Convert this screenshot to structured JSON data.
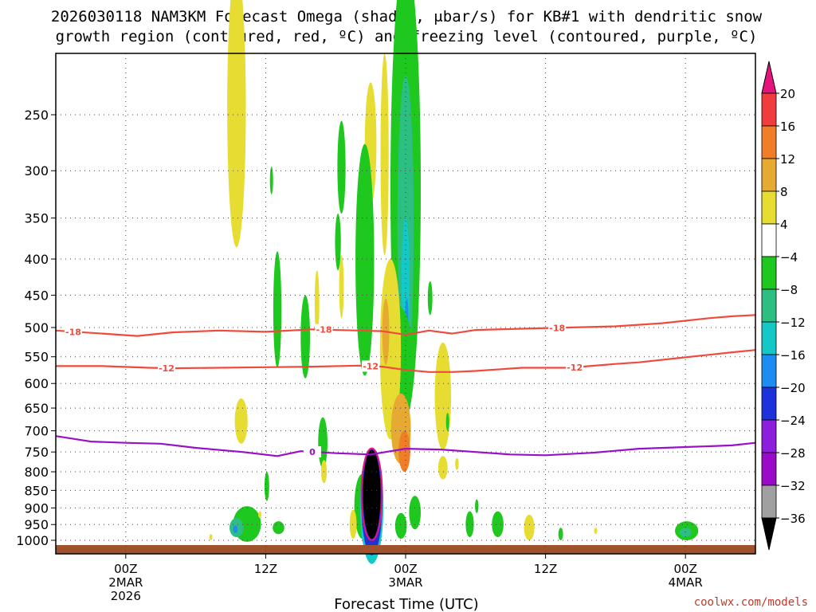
{
  "title": {
    "line1": "2026030118 NAM3KM Forecast Omega (shaded, μbar/s) for KB#1 with dendritic snow",
    "line2": "growth region (contoured, red, ºC) and freezing level (contoured, purple, ºC)"
  },
  "credit": "coolwx.com/models",
  "colors": {
    "dgz_contour": "#f04a3c",
    "freezing_contour": "#9a10c8",
    "ground": "#a0522d",
    "credit": "#c0392b"
  },
  "chart_data": {
    "type": "heatmap",
    "xlabel": "Forecast Time (UTC)",
    "ylabel": "",
    "x_ticks": [
      {
        "hour": 6,
        "l1": "00Z",
        "l2": "2MAR",
        "l3": "2026"
      },
      {
        "hour": 18,
        "l1": "12Z",
        "l2": "",
        "l3": ""
      },
      {
        "hour": 30,
        "l1": "00Z",
        "l2": "3MAR",
        "l3": ""
      },
      {
        "hour": 42,
        "l1": "12Z",
        "l2": "",
        "l3": ""
      },
      {
        "hour": 54,
        "l1": "00Z",
        "l2": "4MAR",
        "l3": ""
      }
    ],
    "xlim": [
      0,
      60
    ],
    "ylim_hpa": [
      1025,
      200
    ],
    "y_ticks": [
      250,
      300,
      350,
      400,
      450,
      500,
      550,
      600,
      650,
      700,
      750,
      800,
      850,
      900,
      950,
      1000
    ],
    "grid": true,
    "colorbar": {
      "labels": [
        "20",
        "16",
        "12",
        "8",
        "4",
        "−4",
        "−8",
        "−12",
        "−16",
        "−20",
        "−24",
        "−28",
        "−32",
        "−36"
      ],
      "bins": [
        {
          "range": [
            16,
            20
          ],
          "color": "#f03c3c"
        },
        {
          "range": [
            12,
            16
          ],
          "color": "#f07d28"
        },
        {
          "range": [
            8,
            12
          ],
          "color": "#e6aa32"
        },
        {
          "range": [
            4,
            8
          ],
          "color": "#e6dc32"
        },
        {
          "range": [
            -4,
            4
          ],
          "color": "#ffffff"
        },
        {
          "range": [
            -8,
            -4
          ],
          "color": "#1ec81e"
        },
        {
          "range": [
            -12,
            -8
          ],
          "color": "#2dbe82"
        },
        {
          "range": [
            -16,
            -12
          ],
          "color": "#14c8c8"
        },
        {
          "range": [
            -20,
            -16
          ],
          "color": "#1e8cf0"
        },
        {
          "range": [
            -24,
            -20
          ],
          "color": "#1e32dc"
        },
        {
          "range": [
            -28,
            -24
          ],
          "color": "#8c1edc"
        },
        {
          "range": [
            -32,
            -28
          ],
          "color": "#9b0ac8"
        },
        {
          "range": [
            -36,
            -32
          ],
          "color": "#a0a0a0"
        }
      ],
      "max_color": "#e6147d",
      "min_color": "#000000"
    },
    "series": [
      {
        "name": "-18",
        "kind": "dgz",
        "label_hours": [
          1.5,
          23,
          43
        ],
        "points": [
          [
            0,
            505
          ],
          [
            4,
            510
          ],
          [
            7,
            514
          ],
          [
            10,
            508
          ],
          [
            14,
            505
          ],
          [
            18,
            507
          ],
          [
            22,
            503
          ],
          [
            26,
            505
          ],
          [
            28,
            506
          ],
          [
            30,
            512
          ],
          [
            32,
            505
          ],
          [
            34,
            510
          ],
          [
            36,
            504
          ],
          [
            40,
            502
          ],
          [
            44,
            500
          ],
          [
            48,
            498
          ],
          [
            52,
            493
          ],
          [
            56,
            485
          ],
          [
            58,
            482
          ],
          [
            60,
            480
          ]
        ]
      },
      {
        "name": "-12",
        "kind": "dgz",
        "label_hours": [
          9.5,
          27,
          44.5
        ],
        "points": [
          [
            0,
            567
          ],
          [
            4,
            567
          ],
          [
            8,
            570
          ],
          [
            10,
            571
          ],
          [
            14,
            570
          ],
          [
            18,
            569
          ],
          [
            22,
            568
          ],
          [
            26,
            566
          ],
          [
            28,
            568
          ],
          [
            30,
            574
          ],
          [
            32,
            578
          ],
          [
            34,
            578
          ],
          [
            36,
            576
          ],
          [
            40,
            570
          ],
          [
            44,
            570
          ],
          [
            48,
            563
          ],
          [
            50,
            560
          ],
          [
            54,
            551
          ],
          [
            58,
            542
          ],
          [
            60,
            538
          ]
        ]
      },
      {
        "name": "0",
        "kind": "freezing",
        "label_hours": [
          22
        ],
        "points": [
          [
            0,
            712
          ],
          [
            3,
            725
          ],
          [
            6,
            728
          ],
          [
            9,
            730
          ],
          [
            12,
            740
          ],
          [
            16,
            750
          ],
          [
            19,
            760
          ],
          [
            21,
            748
          ],
          [
            24,
            753
          ],
          [
            27,
            756
          ],
          [
            30,
            742
          ],
          [
            33,
            744
          ],
          [
            36,
            750
          ],
          [
            39,
            756
          ],
          [
            42,
            758
          ],
          [
            46,
            752
          ],
          [
            50,
            742
          ],
          [
            54,
            738
          ],
          [
            58,
            734
          ],
          [
            60,
            728
          ]
        ]
      }
    ],
    "blobs": [
      {
        "t": 15.5,
        "p": 270,
        "rt": 0.8,
        "rp": 115,
        "v": 5
      },
      {
        "t": 18.5,
        "p": 310,
        "rt": 0.12,
        "rp": 14,
        "v": -5
      },
      {
        "t": 24.5,
        "p": 300,
        "rt": 0.35,
        "rp": 45,
        "v": -5
      },
      {
        "t": 24.5,
        "p": 440,
        "rt": 0.2,
        "rp": 45,
        "v": 6
      },
      {
        "t": 24.2,
        "p": 380,
        "rt": 0.25,
        "rp": 35,
        "v": -6
      },
      {
        "t": 27,
        "p": 280,
        "rt": 0.5,
        "rp": 55,
        "v": 5
      },
      {
        "t": 26.5,
        "p": 430,
        "rt": 0.8,
        "rp": 155,
        "v": -6
      },
      {
        "t": 28.2,
        "p": 300,
        "rt": 0.35,
        "rp": 95,
        "v": 6
      },
      {
        "t": 30,
        "p": 380,
        "rt": 1.3,
        "rp": 290,
        "v": -6
      },
      {
        "t": 30,
        "p": 400,
        "rt": 0.7,
        "rp": 180,
        "v": -10
      },
      {
        "t": 30,
        "p": 440,
        "rt": 0.35,
        "rp": 90,
        "v": -14
      },
      {
        "t": 30.1,
        "p": 480,
        "rt": 0.12,
        "rp": 25,
        "v": -17
      },
      {
        "t": 29.3,
        "p": 560,
        "rt": 1.3,
        "rp": 95,
        "v": -6
      },
      {
        "t": 28.7,
        "p": 560,
        "rt": 0.9,
        "rp": 160,
        "v": 6
      },
      {
        "t": 29.6,
        "p": 700,
        "rt": 0.85,
        "rp": 80,
        "v": 9
      },
      {
        "t": 29.9,
        "p": 750,
        "rt": 0.5,
        "rp": 50,
        "v": 13
      },
      {
        "t": 28.3,
        "p": 510,
        "rt": 0.3,
        "rp": 55,
        "v": 9
      },
      {
        "t": 33.2,
        "p": 635,
        "rt": 0.7,
        "rp": 110,
        "v": 6
      },
      {
        "t": 32.1,
        "p": 455,
        "rt": 0.2,
        "rp": 25,
        "v": -5
      },
      {
        "t": 33.6,
        "p": 680,
        "rt": 0.12,
        "rp": 20,
        "v": -5
      },
      {
        "t": 21.4,
        "p": 520,
        "rt": 0.4,
        "rp": 70,
        "v": -6
      },
      {
        "t": 22.4,
        "p": 465,
        "rt": 0.2,
        "rp": 50,
        "v": 5
      },
      {
        "t": 19,
        "p": 480,
        "rt": 0.35,
        "rp": 90,
        "v": -5
      },
      {
        "t": 15.9,
        "p": 680,
        "rt": 0.55,
        "rp": 50,
        "v": 5
      },
      {
        "t": 18.1,
        "p": 840,
        "rt": 0.2,
        "rp": 40,
        "v": -5
      },
      {
        "t": 22.9,
        "p": 730,
        "rt": 0.4,
        "rp": 60,
        "v": -5
      },
      {
        "t": 23,
        "p": 800,
        "rt": 0.25,
        "rp": 30,
        "v": 5
      },
      {
        "t": 26.3,
        "p": 900,
        "rt": 0.7,
        "rp": 95,
        "v": -7
      },
      {
        "t": 25.5,
        "p": 950,
        "rt": 0.3,
        "rp": 45,
        "v": 6
      },
      {
        "t": 27.1,
        "p": 910,
        "rt": 1.0,
        "rp": 170,
        "v": -15
      },
      {
        "t": 27.1,
        "p": 895,
        "rt": 0.9,
        "rp": 155,
        "v": -22
      },
      {
        "t": 27.1,
        "p": 870,
        "rt": 0.75,
        "rp": 125,
        "v": -38
      },
      {
        "t": 29.6,
        "p": 955,
        "rt": 0.5,
        "rp": 40,
        "v": -5
      },
      {
        "t": 30.8,
        "p": 915,
        "rt": 0.5,
        "rp": 50,
        "v": -6
      },
      {
        "t": 33.2,
        "p": 790,
        "rt": 0.4,
        "rp": 30,
        "v": 5
      },
      {
        "t": 34.4,
        "p": 780,
        "rt": 0.15,
        "rp": 15,
        "v": 5
      },
      {
        "t": 16.4,
        "p": 950,
        "rt": 1.2,
        "rp": 55,
        "v": -6
      },
      {
        "t": 15.5,
        "p": 960,
        "rt": 0.6,
        "rp": 30,
        "v": -12
      },
      {
        "t": 15.4,
        "p": 965,
        "rt": 0.2,
        "rp": 12,
        "v": -17
      },
      {
        "t": 19.1,
        "p": 960,
        "rt": 0.5,
        "rp": 20,
        "v": -5
      },
      {
        "t": 17.5,
        "p": 920,
        "rt": 0.1,
        "rp": 10,
        "v": 6
      },
      {
        "t": 13.3,
        "p": 990,
        "rt": 0.12,
        "rp": 10,
        "v": 6
      },
      {
        "t": 35.5,
        "p": 950,
        "rt": 0.35,
        "rp": 40,
        "v": -5
      },
      {
        "t": 36.1,
        "p": 895,
        "rt": 0.15,
        "rp": 20,
        "v": -5
      },
      {
        "t": 37.9,
        "p": 950,
        "rt": 0.5,
        "rp": 40,
        "v": -6
      },
      {
        "t": 40.6,
        "p": 960,
        "rt": 0.45,
        "rp": 40,
        "v": 5
      },
      {
        "t": 43.3,
        "p": 980,
        "rt": 0.2,
        "rp": 20,
        "v": -5
      },
      {
        "t": 46.3,
        "p": 970,
        "rt": 0.12,
        "rp": 10,
        "v": 5
      },
      {
        "t": 54.1,
        "p": 970,
        "rt": 1.0,
        "rp": 30,
        "v": -6
      },
      {
        "t": 54,
        "p": 975,
        "rt": 0.5,
        "rp": 15,
        "v": -9
      }
    ]
  }
}
